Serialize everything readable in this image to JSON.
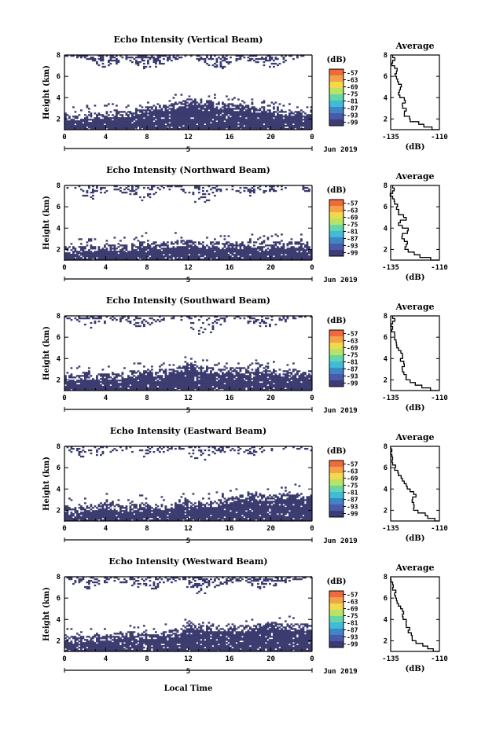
{
  "figure": {
    "date_label": "Jun 2019",
    "colorbar_unit": "(dB)",
    "colorbar_ticks": [
      "-57",
      "-63",
      "-69",
      "-75",
      "-81",
      "-87",
      "-93",
      "-99"
    ],
    "colorbar_colors": [
      "#f06a3c",
      "#f4a24a",
      "#f2d94c",
      "#b9e364",
      "#64d6a8",
      "#3fbcd8",
      "#3e86c4",
      "#4a5aa8",
      "#3b3b78"
    ],
    "x_ticks": [
      "0",
      "4",
      "8",
      "12",
      "16",
      "20",
      "0"
    ],
    "y_ticks": [
      "2",
      "4",
      "6",
      "8"
    ],
    "panel_ylabel": "Height (km)",
    "day_label": "5",
    "avg_title": "Average",
    "avg_xlabel": "(dB)",
    "avg_y_ticks": [
      "2",
      "4",
      "6",
      "8"
    ],
    "xlabel": "Local Time",
    "fill_color": "#3b3b6f"
  },
  "chart_data": [
    {
      "type": "heatmap",
      "title": "Echo Intensity (Vertical Beam)",
      "xlabel": "",
      "ylabel": "Height (km)",
      "xlim": [
        0,
        24
      ],
      "ylim": [
        1,
        8
      ],
      "x_unit": "hours local time",
      "near_surface_top_km": [
        2.3,
        2.2,
        2.4,
        2.3,
        2.5,
        2.6,
        2.4,
        2.8,
        3.0,
        3.2,
        3.1,
        3.4,
        3.8,
        3.6,
        3.5,
        3.3,
        3.2,
        3.1,
        3.0,
        2.9,
        2.8,
        2.7,
        2.6,
        2.6
      ],
      "upper_echo_top_km": [
        8.0,
        8.0,
        7.6,
        7.2,
        7.0,
        7.4,
        7.8,
        7.2,
        6.8,
        7.0,
        7.6,
        7.8,
        8.0,
        7.6,
        7.2,
        6.8,
        7.4,
        7.8,
        7.6,
        7.2,
        7.0,
        7.4,
        7.8,
        8.0
      ],
      "upper_echo_density": 0.5,
      "average": {
        "x_ticks": [
          "-135",
          "-110"
        ],
        "xlim": [
          -135,
          -110
        ],
        "x_tick_values": [
          -135,
          -110
        ],
        "ylim": [
          1,
          8
        ],
        "h": [
          1.0,
          1.5,
          2.0,
          2.5,
          3.0,
          3.5,
          4.0,
          4.5,
          5.0,
          5.5,
          6.0,
          6.5,
          7.0,
          7.5,
          8.0
        ],
        "v": [
          -110,
          -118,
          -125,
          -128,
          -127,
          -129,
          -128,
          -131,
          -130,
          -131,
          -132,
          -132,
          -133,
          -134,
          -134
        ]
      }
    },
    {
      "type": "heatmap",
      "title": "Echo Intensity (Northward Beam)",
      "xlabel": "",
      "ylabel": "Height (km)",
      "xlim": [
        0,
        24
      ],
      "ylim": [
        1,
        8
      ],
      "x_unit": "hours local time",
      "near_surface_top_km": [
        2.1,
        2.0,
        2.2,
        2.1,
        2.3,
        2.2,
        2.2,
        2.4,
        2.6,
        2.4,
        2.5,
        2.6,
        2.7,
        2.5,
        2.6,
        2.4,
        2.5,
        2.4,
        2.6,
        2.3,
        2.4,
        2.6,
        2.5,
        2.4
      ],
      "upper_echo_top_km": [
        8.0,
        7.6,
        7.0,
        6.8,
        7.4,
        7.8,
        7.2,
        6.6,
        7.0,
        7.4,
        7.8,
        8.0,
        7.0,
        6.4,
        6.8,
        7.6,
        7.8,
        7.4,
        7.0,
        7.2,
        7.6,
        7.8,
        8.0,
        7.6
      ],
      "upper_echo_density": 0.3,
      "average": {
        "x_ticks": [
          "-135",
          "-110"
        ],
        "xlim": [
          -135,
          -110
        ],
        "x_tick_values": [
          -135,
          -110
        ],
        "ylim": [
          1,
          8
        ],
        "h": [
          1.0,
          1.5,
          2.0,
          2.5,
          3.0,
          3.5,
          4.0,
          4.5,
          5.0,
          5.5,
          6.0,
          6.5,
          7.0,
          7.5,
          8.0
        ],
        "v": [
          -110,
          -120,
          -126,
          -127,
          -128,
          -129,
          -126,
          -131,
          -127,
          -131,
          -132,
          -133,
          -134,
          -134,
          -134
        ]
      }
    },
    {
      "type": "heatmap",
      "title": "Echo Intensity (Southward Beam)",
      "xlabel": "",
      "ylabel": "Height (km)",
      "xlim": [
        0,
        24
      ],
      "ylim": [
        1,
        8
      ],
      "x_unit": "hours local time",
      "near_surface_top_km": [
        2.3,
        2.2,
        2.5,
        2.3,
        2.4,
        2.3,
        2.6,
        2.7,
        2.9,
        2.6,
        2.8,
        3.0,
        3.3,
        3.1,
        2.9,
        2.8,
        3.0,
        2.9,
        2.8,
        3.1,
        2.9,
        2.7,
        2.8,
        2.6
      ],
      "upper_echo_top_km": [
        8.0,
        7.6,
        7.2,
        6.8,
        7.6,
        7.8,
        7.4,
        7.0,
        7.2,
        7.6,
        7.8,
        8.0,
        7.0,
        6.2,
        6.6,
        7.2,
        7.6,
        7.8,
        7.4,
        7.0,
        7.2,
        7.6,
        7.8,
        8.0
      ],
      "upper_echo_density": 0.3,
      "average": {
        "x_ticks": [
          "-135",
          "-110"
        ],
        "xlim": [
          -135,
          -110
        ],
        "x_tick_values": [
          -135,
          -110
        ],
        "ylim": [
          1,
          8
        ],
        "h": [
          1.0,
          1.5,
          2.0,
          2.5,
          3.0,
          3.5,
          4.0,
          4.5,
          5.0,
          5.5,
          6.0,
          6.5,
          7.0,
          7.5,
          8.0
        ],
        "v": [
          -110,
          -119,
          -125,
          -127,
          -129,
          -128,
          -130,
          -129,
          -131,
          -132,
          -133,
          -133,
          -134,
          -134,
          -134
        ]
      }
    },
    {
      "type": "heatmap",
      "title": "Echo Intensity (Eastward Beam)",
      "xlabel": "",
      "ylabel": "Height (km)",
      "xlim": [
        0,
        24
      ],
      "ylim": [
        1,
        8
      ],
      "x_unit": "hours local time",
      "near_surface_top_km": [
        2.2,
        2.0,
        2.3,
        2.4,
        2.6,
        2.3,
        2.2,
        2.4,
        2.5,
        2.3,
        2.4,
        2.6,
        2.8,
        2.5,
        2.6,
        2.8,
        3.0,
        3.2,
        3.6,
        3.3,
        3.2,
        3.4,
        3.5,
        3.3
      ],
      "upper_echo_top_km": [
        8.0,
        7.4,
        7.0,
        6.8,
        7.2,
        7.6,
        7.8,
        7.4,
        7.0,
        7.2,
        7.8,
        8.0,
        7.4,
        6.6,
        7.2,
        7.6,
        7.8,
        7.4,
        7.2,
        7.6,
        7.8,
        8.0,
        7.8,
        7.6
      ],
      "upper_echo_density": 0.25,
      "average": {
        "x_ticks": [
          "-135",
          "-110"
        ],
        "xlim": [
          -135,
          -110
        ],
        "x_tick_values": [
          -135,
          -110
        ],
        "ylim": [
          1,
          8
        ],
        "h": [
          1.0,
          1.5,
          2.0,
          2.5,
          3.0,
          3.5,
          4.0,
          4.5,
          5.0,
          5.5,
          6.0,
          6.5,
          7.0,
          7.5,
          8.0
        ],
        "v": [
          -110,
          -116,
          -121,
          -123,
          -124,
          -122,
          -125,
          -127,
          -129,
          -131,
          -133,
          -134,
          -134,
          -135,
          -135
        ]
      }
    },
    {
      "type": "heatmap",
      "title": "Echo Intensity (Westward Beam)",
      "xlabel": "Local Time",
      "ylabel": "Height (km)",
      "xlim": [
        0,
        24
      ],
      "ylim": [
        1,
        8
      ],
      "x_unit": "hours local time",
      "near_surface_top_km": [
        2.3,
        2.1,
        2.2,
        2.3,
        2.4,
        2.5,
        2.6,
        2.7,
        2.5,
        2.6,
        2.8,
        2.9,
        3.6,
        3.3,
        3.2,
        3.1,
        3.2,
        3.3,
        3.2,
        3.4,
        3.5,
        3.4,
        3.3,
        3.4
      ],
      "upper_echo_top_km": [
        8.0,
        7.4,
        7.0,
        7.2,
        7.6,
        7.8,
        7.4,
        7.0,
        6.8,
        7.2,
        7.6,
        7.8,
        7.0,
        6.4,
        6.8,
        7.2,
        7.6,
        7.8,
        7.4,
        7.0,
        7.2,
        7.6,
        7.8,
        8.0
      ],
      "upper_echo_density": 0.4,
      "average": {
        "x_ticks": [
          "-135",
          "-110"
        ],
        "xlim": [
          -135,
          -110
        ],
        "x_tick_values": [
          -135,
          -110
        ],
        "ylim": [
          1,
          8
        ],
        "h": [
          1.0,
          1.5,
          2.0,
          2.5,
          3.0,
          3.5,
          4.0,
          4.5,
          5.0,
          5.5,
          6.0,
          6.5,
          7.0,
          7.5,
          8.0
        ],
        "v": [
          -110,
          -116,
          -122,
          -124,
          -126,
          -127,
          -127,
          -129,
          -129,
          -131,
          -132,
          -133,
          -134,
          -134,
          -135
        ]
      }
    }
  ]
}
